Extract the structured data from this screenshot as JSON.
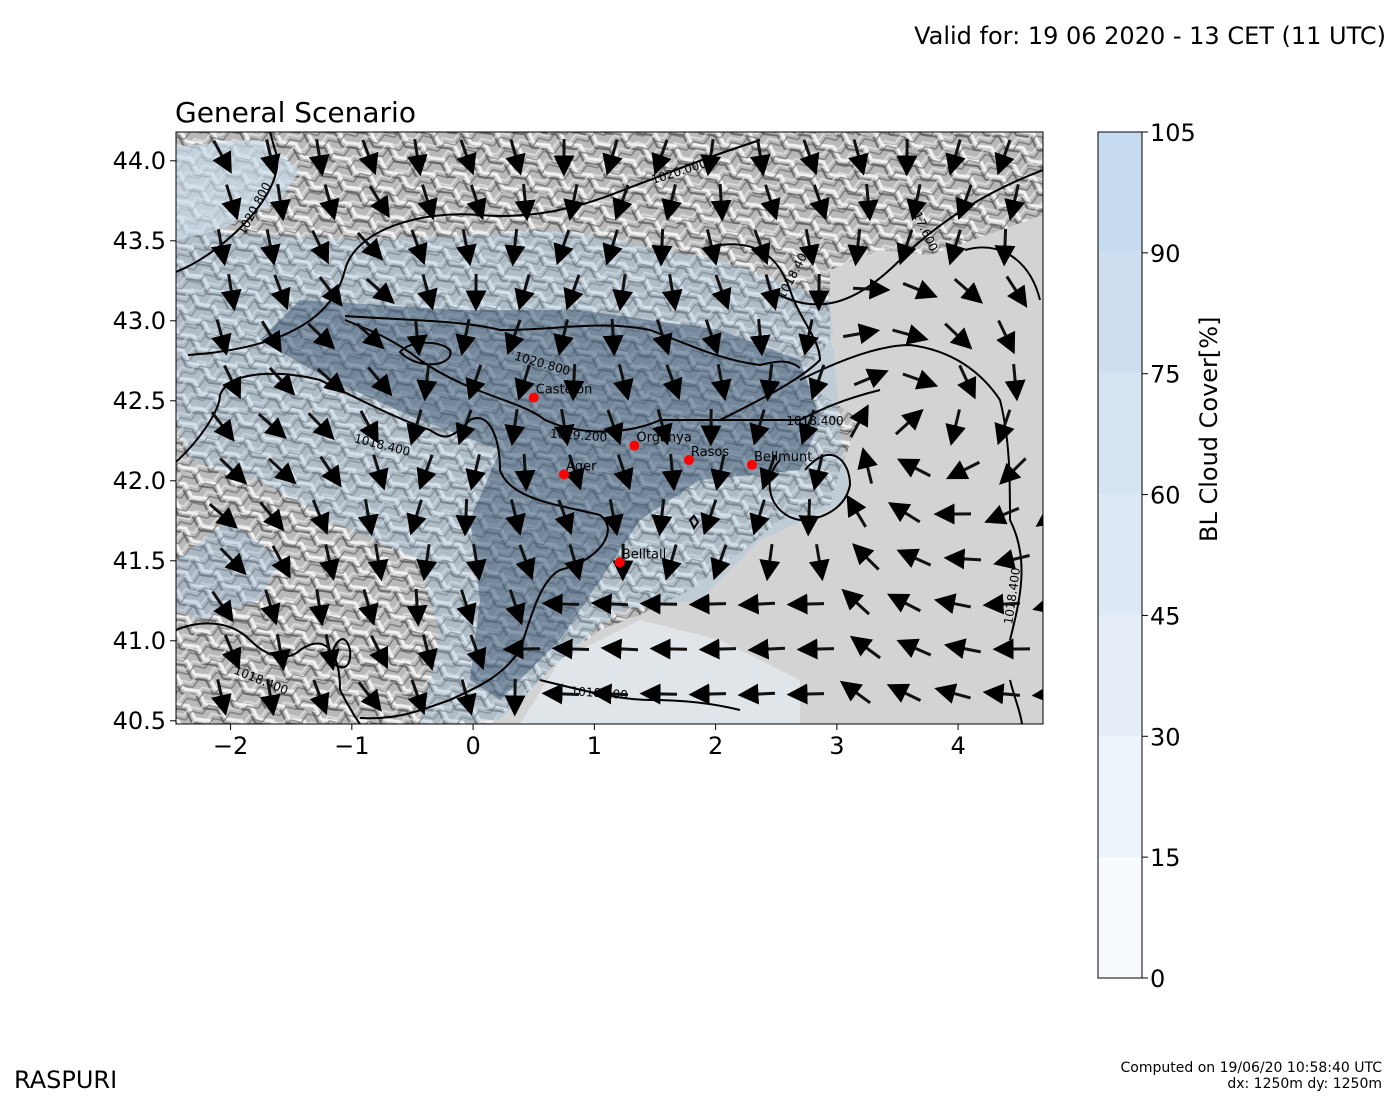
{
  "header": {
    "valid_for": "Valid for: 19 06 2020 - 13 CET (11 UTC)"
  },
  "map": {
    "title": "General Scenario",
    "x_ticks": [
      "−2",
      "−1",
      "0",
      "1",
      "2",
      "3",
      "4"
    ],
    "x_tick_values": [
      -2,
      -1,
      0,
      1,
      2,
      3,
      4
    ],
    "y_ticks": [
      "44.0",
      "43.5",
      "43.0",
      "42.5",
      "42.0",
      "41.5",
      "41.0",
      "40.5"
    ],
    "y_tick_values": [
      44.0,
      43.5,
      43.0,
      42.5,
      42.0,
      41.5,
      41.0,
      40.5
    ],
    "x_range": [
      -2.45,
      4.7
    ],
    "y_range": [
      40.48,
      44.18
    ],
    "places": [
      {
        "name": "Castejon",
        "lon": 0.5,
        "lat": 42.52
      },
      {
        "name": "Organya",
        "lon": 1.33,
        "lat": 42.22
      },
      {
        "name": "Ager",
        "lon": 0.75,
        "lat": 42.04
      },
      {
        "name": "Rasos",
        "lon": 1.78,
        "lat": 42.13
      },
      {
        "name": "Bellmunt",
        "lon": 2.3,
        "lat": 42.1
      },
      {
        "name": "Belltall",
        "lon": 1.21,
        "lat": 41.49
      }
    ],
    "isobar_labels": [
      {
        "text": "1020.800",
        "lon": -1.8,
        "lat": 43.7,
        "angle": -62
      },
      {
        "text": "1020.000",
        "lon": 1.7,
        "lat": 43.93,
        "angle": -18
      },
      {
        "text": "1017.600",
        "lon": 3.7,
        "lat": 43.6,
        "angle": 65
      },
      {
        "text": "1018.400",
        "lon": 2.65,
        "lat": 43.3,
        "angle": -62
      },
      {
        "text": "1020.800",
        "lon": 0.57,
        "lat": 42.73,
        "angle": 16
      },
      {
        "text": "1019.200",
        "lon": 0.87,
        "lat": 42.28,
        "angle": 4
      },
      {
        "text": "1018.400",
        "lon": -0.75,
        "lat": 42.22,
        "angle": 14
      },
      {
        "text": "1018.400",
        "lon": 2.82,
        "lat": 42.37,
        "angle": 0
      },
      {
        "text": "1018.400",
        "lon": 4.45,
        "lat": 41.28,
        "angle": -82
      },
      {
        "text": "1018.400",
        "lon": -1.75,
        "lat": 40.75,
        "angle": 22
      },
      {
        "text": "1018.400",
        "lon": 1.04,
        "lat": 40.67,
        "angle": 4
      }
    ],
    "colors": {
      "pressure_contour": "#000000",
      "place_marker": "#ff0000",
      "sea": "#d3d3d3"
    }
  },
  "colorbar": {
    "label": "BL Cloud Cover[%]",
    "ticks": [
      "105",
      "90",
      "75",
      "60",
      "45",
      "30",
      "15",
      "0"
    ],
    "levels": [
      0,
      15,
      30,
      45,
      60,
      75,
      90,
      105
    ],
    "colors": [
      "#f7fbff",
      "#eef4fb",
      "#e5eef8",
      "#dde9f4",
      "#d5e4f2",
      "#cedff0",
      "#c6dbef"
    ]
  },
  "footer": {
    "brand": "RASPURI",
    "computed_on": "Computed on 19/06/20 10:58:40 UTC",
    "grid": "dx: 1250m dy: 1250m"
  }
}
